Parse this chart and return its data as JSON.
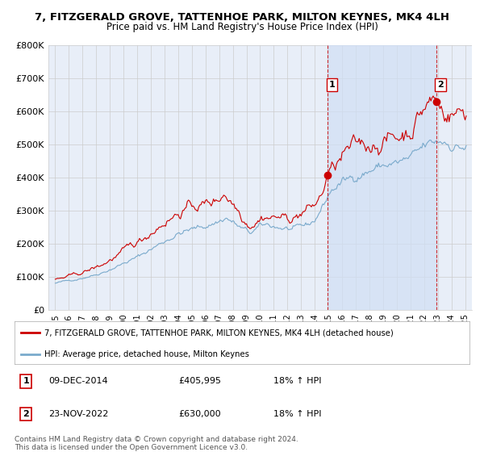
{
  "title_line1": "7, FITZGERALD GROVE, TATTENHOE PARK, MILTON KEYNES, MK4 4LH",
  "title_line2": "Price paid vs. HM Land Registry's House Price Index (HPI)",
  "ylim": [
    0,
    800000
  ],
  "ytick_labels": [
    "£0",
    "£100K",
    "£200K",
    "£300K",
    "£400K",
    "£500K",
    "£600K",
    "£700K",
    "£800K"
  ],
  "ytick_values": [
    0,
    100000,
    200000,
    300000,
    400000,
    500000,
    600000,
    700000,
    800000
  ],
  "background_color": "#ffffff",
  "plot_bg_color": "#e8eef8",
  "shade_color": "#d0dff5",
  "grid_color": "#cccccc",
  "red_color": "#cc0000",
  "blue_color": "#7aaacc",
  "legend_red_label": "7, FITZGERALD GROVE, TATTENHOE PARK, MILTON KEYNES, MK4 4LH (detached house)",
  "legend_blue_label": "HPI: Average price, detached house, Milton Keynes",
  "sale1_label": "1",
  "sale1_date": "09-DEC-2014",
  "sale1_price": "£405,995",
  "sale1_hpi": "18% ↑ HPI",
  "sale1_x": 2014.94,
  "sale1_y": 405995,
  "sale2_label": "2",
  "sale2_date": "23-NOV-2022",
  "sale2_price": "£630,000",
  "sale2_hpi": "18% ↑ HPI",
  "sale2_x": 2022.9,
  "sale2_y": 630000,
  "vline1_x": 2014.94,
  "vline2_x": 2022.9,
  "copyright_text": "Contains HM Land Registry data © Crown copyright and database right 2024.\nThis data is licensed under the Open Government Licence v3.0.",
  "xlim_left": 1994.5,
  "xlim_right": 2025.5,
  "xtick_years": [
    1995,
    1996,
    1997,
    1998,
    1999,
    2000,
    2001,
    2002,
    2003,
    2004,
    2005,
    2006,
    2007,
    2008,
    2009,
    2010,
    2011,
    2012,
    2013,
    2014,
    2015,
    2016,
    2017,
    2018,
    2019,
    2020,
    2021,
    2022,
    2023,
    2024,
    2025
  ]
}
